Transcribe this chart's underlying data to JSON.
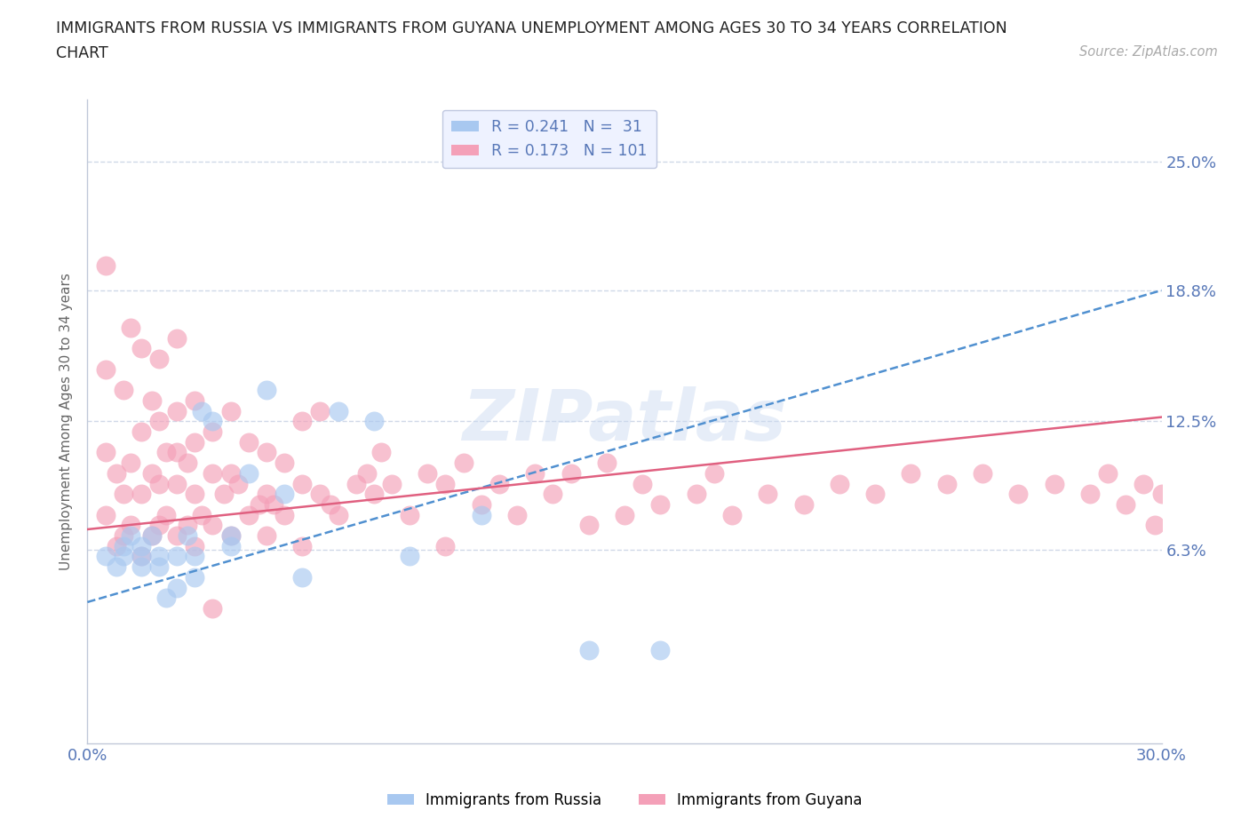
{
  "title_line1": "IMMIGRANTS FROM RUSSIA VS IMMIGRANTS FROM GUYANA UNEMPLOYMENT AMONG AGES 30 TO 34 YEARS CORRELATION",
  "title_line2": "CHART",
  "source": "Source: ZipAtlas.com",
  "ylabel": "Unemployment Among Ages 30 to 34 years",
  "xlim": [
    0.0,
    0.3
  ],
  "ylim": [
    -0.03,
    0.28
  ],
  "ytick_vals": [
    0.063,
    0.125,
    0.188,
    0.25
  ],
  "ytick_labels": [
    "6.3%",
    "12.5%",
    "18.8%",
    "25.0%"
  ],
  "xtick_vals": [
    0.0,
    0.03333,
    0.06667,
    0.1,
    0.13333,
    0.16667,
    0.2,
    0.23333,
    0.26667,
    0.3
  ],
  "xtick_labels": [
    "0.0%",
    "",
    "",
    "",
    "",
    "",
    "",
    "",
    "",
    "30.0%"
  ],
  "russia_R": 0.241,
  "russia_N": 31,
  "guyana_R": 0.173,
  "guyana_N": 101,
  "russia_color": "#a8c8f0",
  "guyana_color": "#f4a0b8",
  "russia_line_color": "#5090d0",
  "guyana_line_color": "#e06080",
  "legend_facecolor": "#eef2ff",
  "legend_edgecolor": "#c0c8e0",
  "watermark": "ZIPatlas",
  "grid_color": "#d0d8e8",
  "label_color": "#5878b8",
  "spine_color": "#c0c8d8",
  "russia_scatter_x": [
    0.005,
    0.008,
    0.01,
    0.01,
    0.012,
    0.015,
    0.015,
    0.015,
    0.018,
    0.02,
    0.02,
    0.022,
    0.025,
    0.025,
    0.028,
    0.03,
    0.03,
    0.032,
    0.035,
    0.04,
    0.04,
    0.045,
    0.05,
    0.055,
    0.06,
    0.07,
    0.08,
    0.09,
    0.11,
    0.14,
    0.16
  ],
  "russia_scatter_y": [
    0.06,
    0.055,
    0.065,
    0.06,
    0.07,
    0.055,
    0.06,
    0.065,
    0.07,
    0.06,
    0.055,
    0.04,
    0.06,
    0.045,
    0.07,
    0.06,
    0.05,
    0.13,
    0.125,
    0.07,
    0.065,
    0.1,
    0.14,
    0.09,
    0.05,
    0.13,
    0.125,
    0.06,
    0.08,
    0.015,
    0.015
  ],
  "guyana_scatter_x": [
    0.005,
    0.005,
    0.005,
    0.005,
    0.008,
    0.008,
    0.01,
    0.01,
    0.01,
    0.012,
    0.012,
    0.012,
    0.015,
    0.015,
    0.015,
    0.015,
    0.018,
    0.018,
    0.018,
    0.02,
    0.02,
    0.02,
    0.02,
    0.022,
    0.022,
    0.025,
    0.025,
    0.025,
    0.025,
    0.025,
    0.028,
    0.028,
    0.03,
    0.03,
    0.03,
    0.03,
    0.032,
    0.035,
    0.035,
    0.035,
    0.038,
    0.04,
    0.04,
    0.04,
    0.042,
    0.045,
    0.045,
    0.048,
    0.05,
    0.05,
    0.05,
    0.052,
    0.055,
    0.055,
    0.06,
    0.06,
    0.06,
    0.065,
    0.065,
    0.068,
    0.07,
    0.075,
    0.078,
    0.08,
    0.082,
    0.085,
    0.09,
    0.095,
    0.1,
    0.1,
    0.105,
    0.11,
    0.115,
    0.12,
    0.125,
    0.13,
    0.135,
    0.14,
    0.145,
    0.15,
    0.155,
    0.16,
    0.17,
    0.175,
    0.18,
    0.19,
    0.2,
    0.21,
    0.22,
    0.23,
    0.24,
    0.25,
    0.26,
    0.27,
    0.28,
    0.285,
    0.29,
    0.295,
    0.298,
    0.3,
    0.035
  ],
  "guyana_scatter_y": [
    0.08,
    0.11,
    0.15,
    0.2,
    0.065,
    0.1,
    0.07,
    0.09,
    0.14,
    0.075,
    0.105,
    0.17,
    0.06,
    0.09,
    0.12,
    0.16,
    0.07,
    0.1,
    0.135,
    0.075,
    0.095,
    0.125,
    0.155,
    0.08,
    0.11,
    0.07,
    0.095,
    0.11,
    0.13,
    0.165,
    0.075,
    0.105,
    0.065,
    0.09,
    0.115,
    0.135,
    0.08,
    0.075,
    0.1,
    0.12,
    0.09,
    0.07,
    0.1,
    0.13,
    0.095,
    0.08,
    0.115,
    0.085,
    0.07,
    0.09,
    0.11,
    0.085,
    0.08,
    0.105,
    0.065,
    0.095,
    0.125,
    0.09,
    0.13,
    0.085,
    0.08,
    0.095,
    0.1,
    0.09,
    0.11,
    0.095,
    0.08,
    0.1,
    0.065,
    0.095,
    0.105,
    0.085,
    0.095,
    0.08,
    0.1,
    0.09,
    0.1,
    0.075,
    0.105,
    0.08,
    0.095,
    0.085,
    0.09,
    0.1,
    0.08,
    0.09,
    0.085,
    0.095,
    0.09,
    0.1,
    0.095,
    0.1,
    0.09,
    0.095,
    0.09,
    0.1,
    0.085,
    0.095,
    0.075,
    0.09,
    0.035
  ]
}
